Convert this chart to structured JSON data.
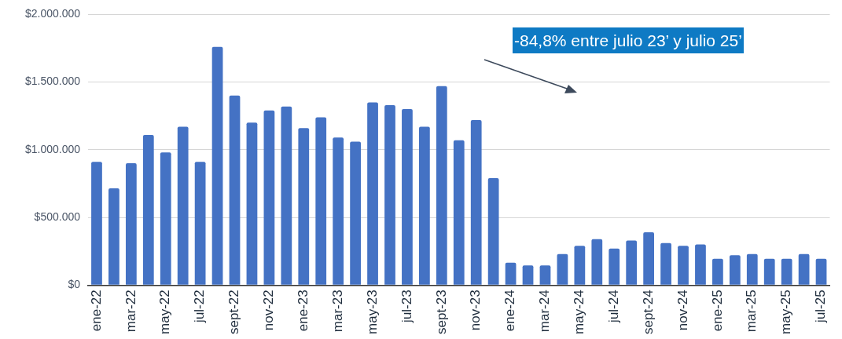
{
  "chart_data": {
    "type": "bar",
    "categories": [
      "ene-22",
      null,
      "mar-22",
      null,
      "may-22",
      null,
      "jul-22",
      null,
      "sept-22",
      null,
      "nov-22",
      null,
      "ene-23",
      null,
      "mar-23",
      null,
      "may-23",
      null,
      "jul-23",
      null,
      "sept-23",
      null,
      "nov-23",
      null,
      "ene-24",
      null,
      "mar-24",
      null,
      "may-24",
      null,
      "jul-24",
      null,
      "sept-24",
      null,
      "nov-24",
      null,
      "ene-25",
      null,
      "mar-25",
      null,
      "may-25",
      null,
      "jul-25"
    ],
    "values": [
      910000,
      715000,
      900000,
      1110000,
      980000,
      1170000,
      910000,
      1760000,
      1400000,
      1200000,
      1290000,
      1320000,
      1160000,
      1240000,
      1090000,
      1060000,
      1350000,
      1330000,
      1300000,
      1170000,
      1470000,
      1070000,
      1220000,
      790000,
      165000,
      145000,
      145000,
      230000,
      290000,
      340000,
      270000,
      330000,
      390000,
      310000,
      290000,
      300000,
      195000,
      220000,
      230000,
      195000,
      195000,
      230000,
      195000
    ],
    "color": "#4472c4",
    "ylim": [
      0,
      2000000
    ],
    "yticks": [
      {
        "value": 0,
        "label": "$0"
      },
      {
        "value": 500000,
        "label": "$500.000"
      },
      {
        "value": 1000000,
        "label": "$1.000.000"
      },
      {
        "value": 1500000,
        "label": "$1.500.000"
      },
      {
        "value": 2000000,
        "label": "$2.000.000"
      }
    ],
    "grid": "y",
    "legend": false,
    "annotations": [
      "-84,8% entre julio 23’ y julio 25’"
    ]
  }
}
